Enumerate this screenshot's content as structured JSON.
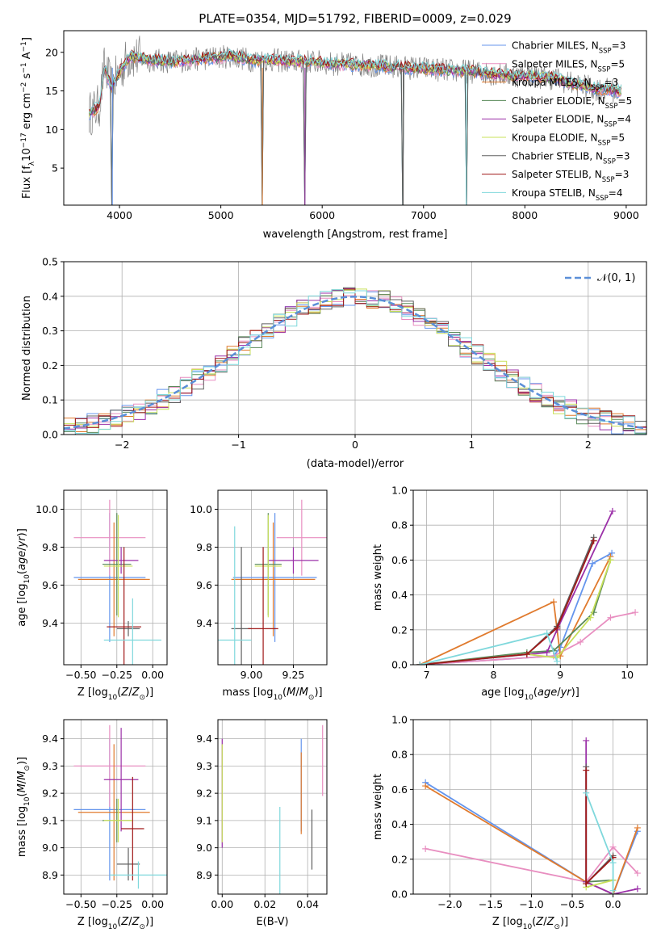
{
  "figure_title": "PLATE=0354, MJD=51792, FIBERID=0009, z=0.029",
  "legend_entries": [
    {
      "name": "Chabrier MILES, N",
      "sub": "SSP",
      "n": "=3",
      "color": "#6495ed"
    },
    {
      "name": "Salpeter MILES, N",
      "sub": "SSP",
      "n": "=5",
      "color": "#e88ec0"
    },
    {
      "name": "Kroupa MILES, N",
      "sub": "SSP",
      "n": "=3",
      "color": "#e07a2d"
    },
    {
      "name": "Chabrier ELODIE, N",
      "sub": "SSP",
      "n": "=5",
      "color": "#5a8a5a"
    },
    {
      "name": "Salpeter ELODIE, N",
      "sub": "SSP",
      "n": "=4",
      "color": "#9b30a8"
    },
    {
      "name": "Kroupa ELODIE, N",
      "sub": "SSP",
      "n": "=5",
      "color": "#c8e05a"
    },
    {
      "name": "Chabrier STELIB, N",
      "sub": "SSP",
      "n": "=3",
      "color": "#606060"
    },
    {
      "name": "Salpeter STELIB, N",
      "sub": "SSP",
      "n": "=3",
      "color": "#a01818"
    },
    {
      "name": "Kroupa STELIB, N",
      "sub": "SSP",
      "n": "=4",
      "color": "#7fd8dc"
    }
  ],
  "chart_data": [
    {
      "id": "spectrum",
      "type": "line",
      "xlabel": "wavelength [Angstrom, rest frame]",
      "ylabel": "Flux [fλ10⁻¹⁷ erg cm⁻² s⁻¹ A⁻¹]",
      "xlim": [
        3450,
        9200
      ],
      "ylim": [
        0.2,
        22.8
      ],
      "xticks": [
        4000,
        5000,
        6000,
        7000,
        8000,
        9000
      ],
      "yticks": [
        5,
        10,
        15,
        20
      ],
      "model_color": "#7fd8dc",
      "data_color": "#808080",
      "continuum_points": [
        [
          3700,
          12
        ],
        [
          3800,
          13
        ],
        [
          3850,
          18
        ],
        [
          3920,
          15.5
        ],
        [
          4000,
          17.5
        ],
        [
          4100,
          19.5
        ],
        [
          4300,
          19
        ],
        [
          4500,
          18.8
        ],
        [
          4700,
          19
        ],
        [
          4900,
          19.3
        ],
        [
          5100,
          19.5
        ],
        [
          5300,
          19
        ],
        [
          5500,
          19
        ],
        [
          5700,
          18.8
        ],
        [
          5900,
          18.8
        ],
        [
          6100,
          18.5
        ],
        [
          6300,
          18.4
        ],
        [
          6500,
          18.3
        ],
        [
          6700,
          18.1
        ],
        [
          6900,
          18
        ],
        [
          7100,
          17.8
        ],
        [
          7300,
          17.6
        ],
        [
          7500,
          17.5
        ],
        [
          7700,
          17.2
        ],
        [
          7900,
          17
        ],
        [
          8100,
          16.9
        ],
        [
          8300,
          16.6
        ],
        [
          8500,
          15.8
        ],
        [
          8700,
          15.3
        ],
        [
          8900,
          15
        ]
      ],
      "dips": [
        [
          3930,
          0.2
        ],
        [
          5410,
          0.2
        ],
        [
          5830,
          0.2
        ],
        [
          6800,
          0.2
        ],
        [
          7420,
          0.2
        ]
      ]
    },
    {
      "id": "residuals",
      "type": "histogram",
      "xlabel": "(data-model)/error",
      "ylabel": "Normed distribution",
      "xlim": [
        -2.5,
        2.5
      ],
      "ylim": [
        0,
        0.5
      ],
      "xticks": [
        -2,
        -1,
        0,
        1,
        2
      ],
      "yticks": [
        0.0,
        0.1,
        0.2,
        0.3,
        0.4,
        0.5
      ],
      "legend": "𝒩(0, 1)",
      "gaussian": {
        "mean": 0,
        "sigma": 1,
        "color": "#5b8fd8"
      },
      "bin_width": 0.1
    },
    {
      "id": "age_vs_Z",
      "type": "errorbar",
      "xlabel": "Z [log10(Z/Z⊙)]",
      "ylabel": "age  [log10(age/yr)]",
      "xlim": [
        -0.62,
        0.1
      ],
      "ylim": [
        9.18,
        10.1
      ],
      "xticks": [
        -0.5,
        -0.25,
        0.0
      ],
      "yticks": [
        9.4,
        9.6,
        9.8,
        10.0
      ],
      "points": [
        {
          "x": -0.3,
          "xerr": 0.25,
          "y": 9.64,
          "yerr": 0.34,
          "color": "#6495ed"
        },
        {
          "x": -0.3,
          "xerr": 0.25,
          "y": 9.85,
          "yerr": 0.2,
          "color": "#e88ec0"
        },
        {
          "x": -0.27,
          "xerr": 0.25,
          "y": 9.63,
          "yerr": 0.3,
          "color": "#e07a2d"
        },
        {
          "x": -0.25,
          "xerr": 0.1,
          "y": 9.71,
          "yerr": 0.27,
          "color": "#5a8a5a"
        },
        {
          "x": -0.22,
          "xerr": 0.12,
          "y": 9.73,
          "yerr": 0.07,
          "color": "#9b30a8"
        },
        {
          "x": -0.24,
          "xerr": 0.1,
          "y": 9.7,
          "yerr": 0.27,
          "color": "#c8e05a"
        },
        {
          "x": -0.17,
          "xerr": 0.08,
          "y": 9.37,
          "yerr": 0.04,
          "color": "#606060"
        },
        {
          "x": -0.2,
          "xerr": 0.12,
          "y": 9.38,
          "yerr": 0.42,
          "color": "#a01818"
        },
        {
          "x": -0.14,
          "xerr": 0.2,
          "y": 9.31,
          "yerr": 0.22,
          "color": "#7fd8dc"
        }
      ]
    },
    {
      "id": "age_vs_mass",
      "type": "errorbar",
      "xlabel": "mass [log10(M/M⊙)]",
      "ylabel": "",
      "xlim": [
        8.8,
        9.45
      ],
      "ylim": [
        9.18,
        10.1
      ],
      "xticks": [
        9.0,
        9.25
      ],
      "yticks": [
        9.4,
        9.6,
        9.8,
        10.0
      ],
      "points": [
        {
          "x": 9.14,
          "xerr": 0.25,
          "y": 9.64,
          "yerr": 0.34,
          "color": "#6495ed"
        },
        {
          "x": 9.3,
          "xerr": 0.15,
          "y": 9.85,
          "yerr": 0.2,
          "color": "#e88ec0"
        },
        {
          "x": 9.13,
          "xerr": 0.25,
          "y": 9.63,
          "yerr": 0.3,
          "color": "#e07a2d"
        },
        {
          "x": 9.1,
          "xerr": 0.08,
          "y": 9.71,
          "yerr": 0.27,
          "color": "#5a8a5a"
        },
        {
          "x": 9.25,
          "xerr": 0.15,
          "y": 9.73,
          "yerr": 0.07,
          "color": "#9b30a8"
        },
        {
          "x": 9.1,
          "xerr": 0.08,
          "y": 9.7,
          "yerr": 0.27,
          "color": "#c8e05a"
        },
        {
          "x": 8.94,
          "xerr": 0.06,
          "y": 9.37,
          "yerr": 0.43,
          "color": "#606060"
        },
        {
          "x": 9.07,
          "xerr": 0.09,
          "y": 9.37,
          "yerr": 0.43,
          "color": "#a01818"
        },
        {
          "x": 8.9,
          "xerr": 0.1,
          "y": 9.31,
          "yerr": 0.6,
          "color": "#7fd8dc"
        }
      ]
    },
    {
      "id": "weight_vs_age",
      "type": "line",
      "xlabel": "age  [log10(age/yr)]",
      "ylabel": "mass weight",
      "xlim": [
        6.8,
        10.3
      ],
      "ylim": [
        0,
        1
      ],
      "xticks": [
        7,
        8,
        9,
        10
      ],
      "yticks": [
        0.0,
        0.2,
        0.4,
        0.6,
        0.8,
        1.0
      ],
      "series": [
        {
          "color": "#6495ed",
          "x": [
            6.9,
            8.9,
            9.0,
            9.48,
            9.77
          ],
          "y": [
            0.0,
            0.05,
            0.1,
            0.58,
            0.64
          ]
        },
        {
          "color": "#e88ec0",
          "x": [
            6.9,
            8.9,
            9.3,
            9.75,
            10.12
          ],
          "y": [
            0.0,
            0.05,
            0.13,
            0.27,
            0.3
          ]
        },
        {
          "color": "#e07a2d",
          "x": [
            6.9,
            8.9,
            9.0,
            9.75
          ],
          "y": [
            0.0,
            0.36,
            0.05,
            0.62
          ]
        },
        {
          "color": "#5a8a5a",
          "x": [
            6.9,
            8.5,
            8.9,
            9.5,
            9.75
          ],
          "y": [
            0.0,
            0.07,
            0.08,
            0.3,
            0.6
          ]
        },
        {
          "color": "#9b30a8",
          "x": [
            6.9,
            8.8,
            8.95,
            9.78
          ],
          "y": [
            0.0,
            0.07,
            0.2,
            0.88
          ]
        },
        {
          "color": "#c8e05a",
          "x": [
            6.9,
            8.5,
            8.95,
            9.45,
            9.75
          ],
          "y": [
            0.0,
            0.06,
            0.04,
            0.27,
            0.6
          ]
        },
        {
          "color": "#606060",
          "x": [
            6.9,
            8.5,
            8.95,
            9.5
          ],
          "y": [
            0.0,
            0.06,
            0.22,
            0.73
          ]
        },
        {
          "color": "#a01818",
          "x": [
            6.9,
            8.5,
            8.95,
            9.5
          ],
          "y": [
            0.0,
            0.06,
            0.21,
            0.71
          ]
        },
        {
          "color": "#7fd8dc",
          "x": [
            6.9,
            8.8,
            8.95
          ],
          "y": [
            0.0,
            0.18,
            0.02
          ]
        }
      ]
    },
    {
      "id": "mass_vs_Z",
      "type": "errorbar",
      "xlabel": "Z [log10(Z/Z⊙)]",
      "ylabel": "mass [log10(M/M⊙)]",
      "xlim": [
        -0.62,
        0.1
      ],
      "ylim": [
        8.83,
        9.47
      ],
      "xticks": [
        -0.5,
        -0.25,
        0.0
      ],
      "yticks": [
        8.9,
        9.0,
        9.1,
        9.2,
        9.3,
        9.4
      ],
      "points": [
        {
          "x": -0.3,
          "xerr": 0.25,
          "y": 9.14,
          "yerr": 0.26,
          "color": "#6495ed"
        },
        {
          "x": -0.3,
          "xerr": 0.25,
          "y": 9.3,
          "yerr": 0.15,
          "color": "#e88ec0"
        },
        {
          "x": -0.27,
          "xerr": 0.25,
          "y": 9.13,
          "yerr": 0.25,
          "color": "#e07a2d"
        },
        {
          "x": -0.25,
          "xerr": 0.1,
          "y": 9.1,
          "yerr": 0.08,
          "color": "#5a8a5a"
        },
        {
          "x": -0.22,
          "xerr": 0.12,
          "y": 9.25,
          "yerr": 0.19,
          "color": "#9b30a8"
        },
        {
          "x": -0.24,
          "xerr": 0.1,
          "y": 9.1,
          "yerr": 0.08,
          "color": "#c8e05a"
        },
        {
          "x": -0.17,
          "xerr": 0.08,
          "y": 8.94,
          "yerr": 0.06,
          "color": "#606060"
        },
        {
          "x": -0.14,
          "xerr": 0.08,
          "y": 9.07,
          "yerr": 0.19,
          "color": "#a01818"
        },
        {
          "x": -0.1,
          "xerr": 0.2,
          "y": 8.9,
          "yerr": 0.05,
          "color": "#7fd8dc"
        }
      ]
    },
    {
      "id": "mass_vs_ebv",
      "type": "errorbar",
      "xlabel": "E(B-V)",
      "ylabel": "",
      "xlim": [
        -0.002,
        0.049
      ],
      "ylim": [
        8.83,
        9.47
      ],
      "xticks": [
        0.0,
        0.02,
        0.04
      ],
      "yticks": [
        8.9,
        9.0,
        9.1,
        9.2,
        9.3,
        9.4
      ],
      "points": [
        {
          "x": 0.0,
          "y": 9.2,
          "yerr": 0.2,
          "color": "#9b30a8"
        },
        {
          "x": 0.0,
          "y": 9.2,
          "yerr": 0.18,
          "color": "#c8e05a"
        },
        {
          "x": 0.037,
          "y": 9.23,
          "yerr": 0.17,
          "color": "#6495ed"
        },
        {
          "x": 0.037,
          "y": 9.2,
          "yerr": 0.15,
          "color": "#e07a2d"
        },
        {
          "x": 0.027,
          "y": 8.99,
          "yerr": 0.16,
          "color": "#7fd8dc"
        },
        {
          "x": 0.042,
          "y": 9.03,
          "yerr": 0.11,
          "color": "#606060"
        },
        {
          "x": 0.047,
          "y": 9.32,
          "yerr": 0.13,
          "color": "#e88ec0"
        }
      ]
    },
    {
      "id": "weight_vs_Z",
      "type": "line",
      "xlabel": "Z [log10(Z/Z⊙)]",
      "ylabel": "mass weight",
      "xlim": [
        -2.45,
        0.42
      ],
      "ylim": [
        0,
        1
      ],
      "xticks": [
        -2.0,
        -1.5,
        -1.0,
        -0.5,
        0.0
      ],
      "yticks": [
        0.0,
        0.2,
        0.4,
        0.6,
        0.8,
        1.0
      ],
      "series": [
        {
          "color": "#6495ed",
          "x": [
            -2.3,
            -0.33,
            0.0,
            0.3
          ],
          "y": [
            0.64,
            0.07,
            0.0,
            0.36
          ]
        },
        {
          "color": "#e88ec0",
          "x": [
            -2.3,
            -0.33,
            0.0,
            0.3
          ],
          "y": [
            0.26,
            0.07,
            0.27,
            0.12
          ]
        },
        {
          "color": "#e07a2d",
          "x": [
            -2.3,
            -0.33,
            0.0,
            0.3
          ],
          "y": [
            0.62,
            0.07,
            0.0,
            0.38
          ]
        },
        {
          "color": "#5a8a5a",
          "x": [
            -0.33,
            0.0
          ],
          "y": [
            0.07,
            0.08
          ]
        },
        {
          "color": "#9b30a8",
          "x": [
            -0.33,
            -0.33,
            0.0,
            0.3
          ],
          "y": [
            0.88,
            0.07,
            0.0,
            0.03
          ]
        },
        {
          "color": "#c8e05a",
          "x": [
            -0.33,
            0.0,
            0.0
          ],
          "y": [
            0.04,
            0.08,
            0.0
          ]
        },
        {
          "color": "#606060",
          "x": [
            -0.33,
            -0.33,
            0.0
          ],
          "y": [
            0.73,
            0.06,
            0.22
          ]
        },
        {
          "color": "#a01818",
          "x": [
            -0.33,
            -0.33,
            0.0
          ],
          "y": [
            0.71,
            0.06,
            0.21
          ]
        },
        {
          "color": "#7fd8dc",
          "x": [
            -0.33,
            0.0,
            0.0
          ],
          "y": [
            0.58,
            0.18,
            0.02
          ]
        }
      ]
    }
  ]
}
